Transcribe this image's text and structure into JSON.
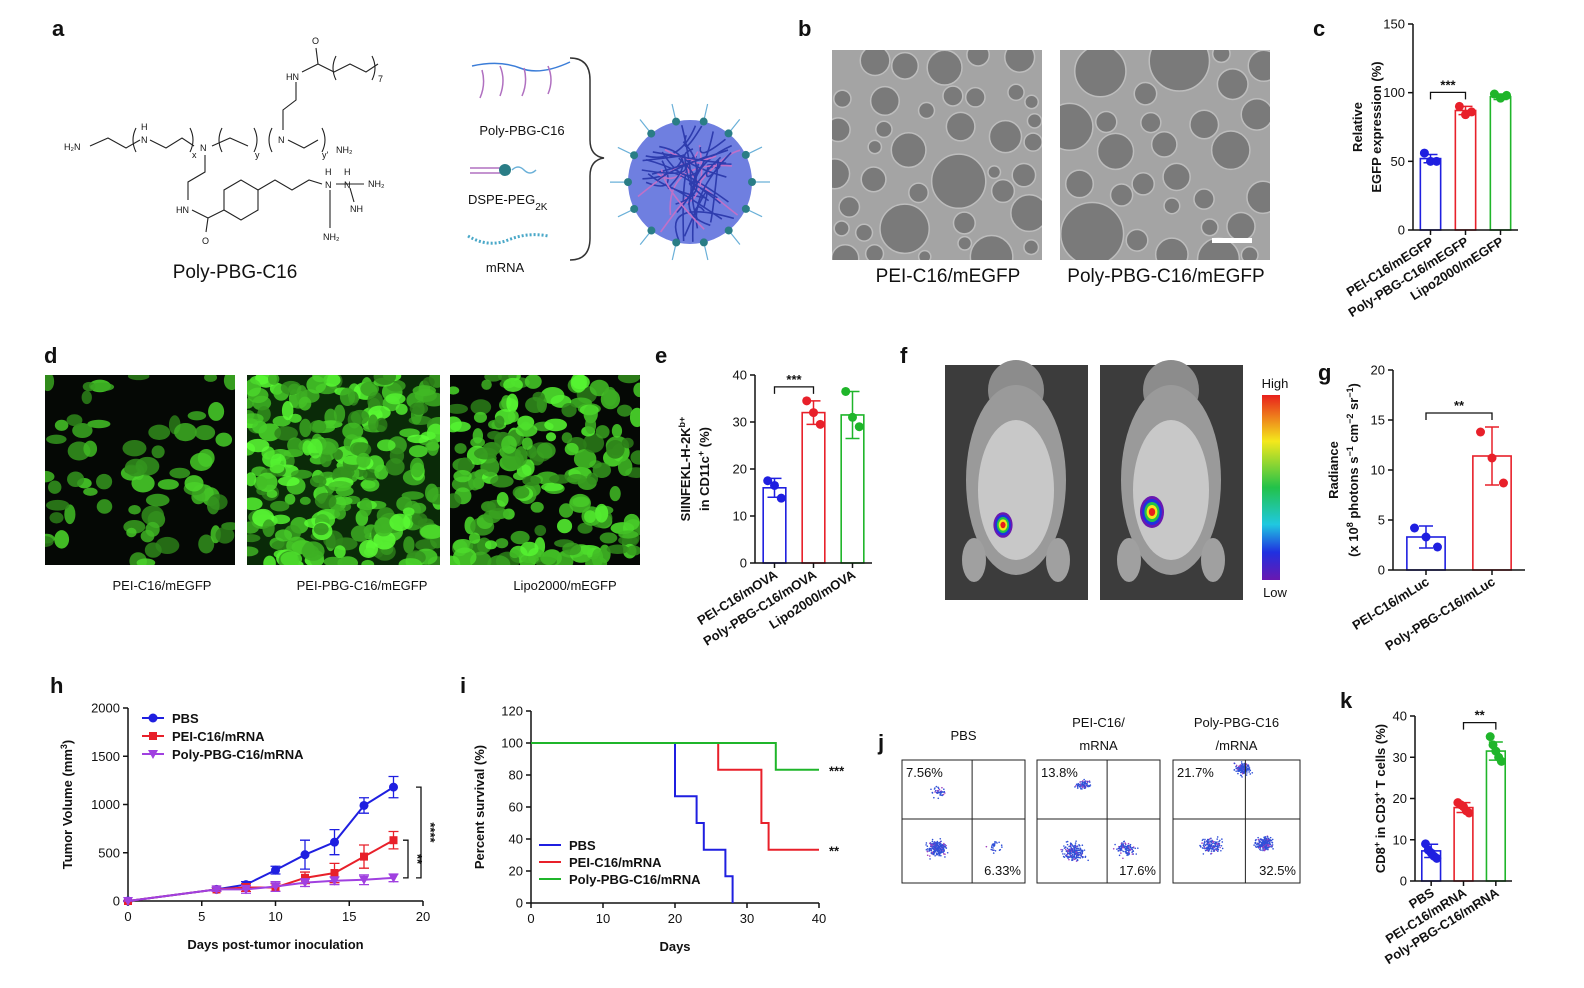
{
  "panel_labels": [
    "a",
    "b",
    "c",
    "d",
    "e",
    "f",
    "g",
    "h",
    "i",
    "j",
    "k"
  ],
  "panel_a": {
    "structure_label": "Poly-PBG-C16",
    "atoms": [
      "H₂N",
      "H",
      "N",
      "x",
      "N",
      "y",
      "N",
      "y'",
      "NH₂",
      "HN",
      "O",
      "7",
      "HN",
      "O",
      "H",
      "N",
      "H",
      "N",
      "NH₂",
      "NH₂",
      "NH"
    ],
    "components": [
      "Poly-PBG-C16",
      "DSPE-PEG",
      "mRNA"
    ],
    "peg_subscript": "2K"
  },
  "panel_b": {
    "labels": [
      "PEI-C16/mEGFP",
      "Poly-PBG-C16/mEGFP"
    ]
  },
  "panel_d": {
    "labels": [
      "PEI-C16/mEGFP",
      "PEI-PBG-C16/mEGFP",
      "Lipo2000/mEGFP"
    ]
  },
  "panel_f": {
    "scale_high": "High",
    "scale_low": "Low"
  },
  "panel_j": {
    "titles": [
      [
        "PBS"
      ],
      [
        "PEI-C16/",
        "mRNA"
      ],
      [
        "Poly-PBG-C16",
        "/mRNA"
      ]
    ],
    "quadrants": [
      [
        "7.56%",
        "6.33%"
      ],
      [
        "13.8%",
        "17.6%"
      ],
      [
        "21.7%",
        "32.5%"
      ]
    ]
  },
  "chart_data": [
    {
      "type": "bar",
      "categories": [
        "PEI-C16/mEGFP",
        "Poly-PBG-C16/mEGFP",
        "Lipo2000/mEGFP"
      ],
      "values": [
        52,
        87,
        97
      ],
      "errors": [
        3,
        3,
        2
      ],
      "points": [
        [
          56,
          50,
          50
        ],
        [
          90,
          84,
          86
        ],
        [
          99,
          96,
          98
        ]
      ],
      "colors": [
        "#1f1fe0",
        "#e8202a",
        "#1fb52a"
      ],
      "ylim": [
        0,
        150
      ],
      "yticks": [
        0,
        50,
        100,
        150
      ],
      "ylabel": [
        [
          "Relative"
        ],
        [
          "EGFP expression (%)"
        ]
      ],
      "significance": "***"
    },
    {
      "type": "bar",
      "categories": [
        "PEI-C16/mOVA",
        "Poly-PBG-C16/mOVA",
        "Lipo2000/mOVA"
      ],
      "values": [
        16,
        32,
        31.5
      ],
      "errors": [
        2,
        2.5,
        5
      ],
      "points": [
        [
          17.5,
          16.5,
          13.8
        ],
        [
          34.5,
          32,
          29.5
        ],
        [
          36.5,
          31,
          29
        ]
      ],
      "colors": [
        "#1f1fe0",
        "#e8202a",
        "#1fb52a"
      ],
      "ylim": [
        0,
        40
      ],
      "yticks": [
        0,
        10,
        20,
        30,
        40
      ],
      "ylabel": [
        [
          "SIINFEKL-H-2K",
          "b+"
        ],
        [
          "in CD11c",
          "+",
          " (%)"
        ]
      ],
      "significance": "***"
    },
    {
      "type": "bar",
      "categories": [
        "PEI-C16/mLuc",
        "Poly-PBG-C16/mLuc"
      ],
      "values": [
        3.3,
        11.4
      ],
      "errors": [
        1.1,
        2.9
      ],
      "points": [
        [
          4.2,
          3.3,
          2.3
        ],
        [
          13.8,
          11.2,
          8.7
        ]
      ],
      "colors": [
        "#1f1fe0",
        "#e8202a"
      ],
      "ylim": [
        0,
        20
      ],
      "yticks": [
        0,
        5,
        10,
        15,
        20
      ],
      "ylabel": [
        [
          "Radiance"
        ],
        [
          "(x 10",
          "8",
          " photons s",
          "−1",
          " cm",
          "−2",
          " sr",
          "−1",
          ")"
        ]
      ],
      "significance": "**"
    },
    {
      "type": "line",
      "x": [
        0,
        6,
        8,
        10,
        12,
        14,
        16,
        18
      ],
      "xlim": [
        0,
        20
      ],
      "xticks": [
        0,
        5,
        10,
        15,
        20
      ],
      "ylim": [
        0,
        2000
      ],
      "yticks": [
        0,
        500,
        1000,
        1500,
        2000
      ],
      "xlabel": "Days post-tumor inoculation",
      "ylabel": [
        [
          "Tumor Volume (mm",
          "3",
          ")"
        ]
      ],
      "series": [
        {
          "name": "PBS",
          "color": "#1f1fe0",
          "marker": "circle",
          "values": [
            0,
            120,
            170,
            320,
            480,
            610,
            990,
            1180
          ],
          "errors": [
            0,
            20,
            30,
            40,
            150,
            130,
            80,
            110
          ]
        },
        {
          "name": "PEI-C16/mRNA",
          "color": "#e8202a",
          "marker": "square",
          "values": [
            0,
            120,
            140,
            140,
            240,
            290,
            460,
            630
          ],
          "errors": [
            0,
            20,
            40,
            40,
            60,
            100,
            120,
            90
          ]
        },
        {
          "name": "Poly-PBG-C16/mRNA",
          "color": "#a040e0",
          "marker": "triangle",
          "values": [
            0,
            120,
            120,
            150,
            190,
            210,
            220,
            240
          ],
          "errors": [
            0,
            20,
            40,
            50,
            40,
            40,
            50,
            40
          ]
        }
      ],
      "annotations": [
        "****",
        "**"
      ]
    },
    {
      "type": "line",
      "step": true,
      "xlim": [
        0,
        40
      ],
      "xticks": [
        0,
        10,
        20,
        30,
        40
      ],
      "ylim": [
        0,
        120
      ],
      "yticks": [
        0,
        20,
        40,
        60,
        80,
        100,
        120
      ],
      "xlabel": "Days",
      "ylabel": [
        [
          "Percent survival (%)"
        ]
      ],
      "series": [
        {
          "name": "PBS",
          "color": "#1f1fe0",
          "x": [
            0,
            20,
            23,
            24,
            27,
            28
          ],
          "values": [
            100,
            66.7,
            50,
            33.3,
            16.7,
            0
          ]
        },
        {
          "name": "PEI-C16/mRNA",
          "color": "#e8202a",
          "x": [
            0,
            26,
            32,
            33,
            40
          ],
          "values": [
            100,
            83.3,
            50,
            33.3,
            33.3
          ]
        },
        {
          "name": "Poly-PBG-C16/mRNA",
          "color": "#1fb52a",
          "x": [
            0,
            34,
            40
          ],
          "values": [
            100,
            83.3,
            83.3
          ]
        }
      ],
      "annotations": [
        "***",
        "**"
      ]
    },
    {
      "type": "bar",
      "categories": [
        "PBS",
        "PEI-C16/mRNA",
        "Poly-PBG-C16/mRNA"
      ],
      "values": [
        7.3,
        17.8,
        31.5
      ],
      "errors": [
        1.6,
        1.2,
        2.2
      ],
      "points": [
        [
          9,
          7.5,
          6.8,
          6,
          5.5
        ],
        [
          19,
          18.5,
          18,
          17,
          16.5
        ],
        [
          35,
          33,
          31.5,
          30,
          29
        ]
      ],
      "colors": [
        "#1f1fe0",
        "#e8202a",
        "#1fb52a"
      ],
      "ylim": [
        0,
        40
      ],
      "yticks": [
        0,
        10,
        20,
        30,
        40
      ],
      "ylabel": [
        [
          "CD8",
          "+",
          " in CD3",
          "+",
          " T cells (%)"
        ]
      ],
      "significance": "**"
    }
  ]
}
